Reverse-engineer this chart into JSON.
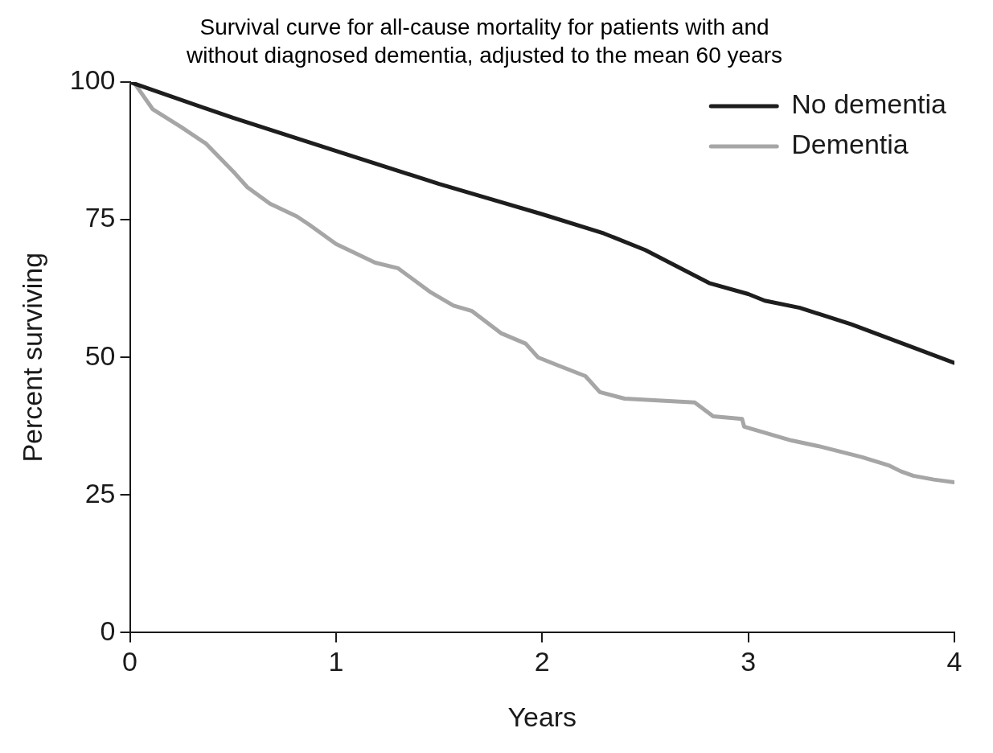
{
  "chart_data": {
    "type": "line",
    "title": [
      "Survival curve for all-cause mortality for patients with and",
      "without diagnosed dementia, adjusted to the mean 60 years"
    ],
    "xlabel": "Years",
    "ylabel": "Percent surviving",
    "xlim": [
      0,
      4
    ],
    "xticks": [
      0,
      1,
      2,
      3,
      4
    ],
    "ylim": [
      0,
      100
    ],
    "yticks": [
      0,
      25,
      50,
      75,
      100
    ],
    "grid": false,
    "legend": "top right",
    "marker": "none",
    "line_style": "solid",
    "series": [
      {
        "name": "No dementia",
        "color": "#1e1e1e",
        "x": [
          0,
          0.5,
          1,
          1.5,
          2,
          2.3,
          2.5,
          2.81,
          3,
          3.08,
          3.25,
          3.5,
          3.75,
          4
        ],
        "values": [
          100,
          93.5,
          87.5,
          81.5,
          76,
          72.5,
          69.5,
          63.5,
          61.5,
          60.3,
          59,
          56,
          52.5,
          49
        ]
      },
      {
        "name": "Dementia",
        "color": "#a6a6a6",
        "x": [
          0,
          0.02,
          0.11,
          0.25,
          0.37,
          0.51,
          0.57,
          0.68,
          0.81,
          0.87,
          1,
          1.19,
          1.3,
          1.46,
          1.57,
          1.66,
          1.8,
          1.92,
          1.98,
          2.08,
          2.21,
          2.28,
          2.4,
          2.74,
          2.83,
          2.97,
          2.98,
          3.21,
          3.35,
          3.55,
          3.68,
          3.74,
          3.8,
          3.9,
          4
        ],
        "values": [
          100,
          99.9,
          95.1,
          91.8,
          88.8,
          83.4,
          80.9,
          77.9,
          75.6,
          74.1,
          70.6,
          67.2,
          66.2,
          61.8,
          59.4,
          58.4,
          54.4,
          52.5,
          50,
          48.5,
          46.6,
          43.7,
          42.5,
          41.8,
          39.3,
          38.8,
          37.4,
          34.9,
          33.8,
          31.9,
          30.4,
          29.3,
          28.5,
          27.8,
          27.3
        ]
      }
    ]
  }
}
